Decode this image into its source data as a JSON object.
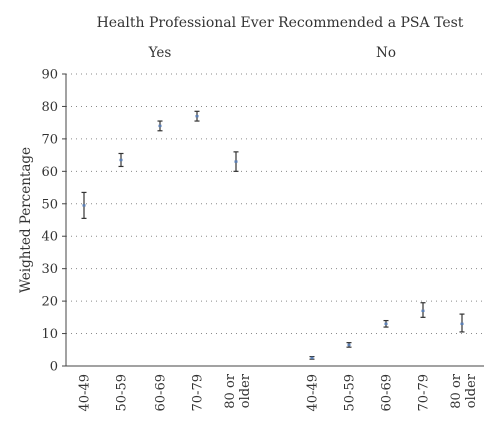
{
  "chart_data": {
    "type": "scatter",
    "title": "Health Professional Ever Recommended a PSA Test",
    "ylabel": "Weighted Percentage",
    "ylim": [
      0,
      90
    ],
    "yticks": [
      0,
      10,
      20,
      30,
      40,
      50,
      60,
      70,
      80,
      90
    ],
    "grid": true,
    "marker_color": "#5b7fb5",
    "groups": [
      {
        "label": "Yes",
        "categories": [
          "40-49",
          "50-59",
          "60-69",
          "70-79",
          "80 or older"
        ],
        "points": [
          {
            "value": 49.5,
            "lower": 45.5,
            "upper": 53.5
          },
          {
            "value": 63.5,
            "lower": 61.5,
            "upper": 65.5
          },
          {
            "value": 74,
            "lower": 72.5,
            "upper": 75.5
          },
          {
            "value": 77,
            "lower": 75.5,
            "upper": 78.5
          },
          {
            "value": 63,
            "lower": 60,
            "upper": 66
          }
        ]
      },
      {
        "label": "No",
        "categories": [
          "40-49",
          "50-59",
          "60-69",
          "70-79",
          "80 or older"
        ],
        "points": [
          {
            "value": 2.5,
            "lower": 2.1,
            "upper": 2.9
          },
          {
            "value": 6.5,
            "lower": 5.8,
            "upper": 7.2
          },
          {
            "value": 13,
            "lower": 12,
            "upper": 14
          },
          {
            "value": 17,
            "lower": 15,
            "upper": 19.5
          },
          {
            "value": 13,
            "lower": 10.5,
            "upper": 16
          }
        ]
      }
    ]
  }
}
